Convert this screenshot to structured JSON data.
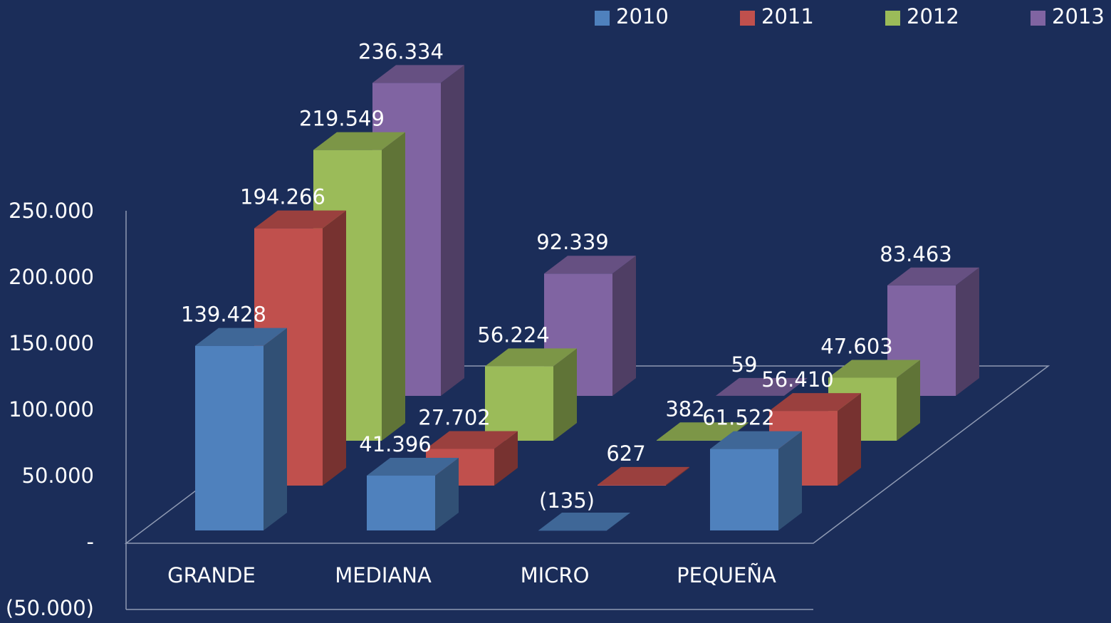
{
  "chart_data": {
    "type": "bar3d",
    "categories": [
      "GRANDE",
      "MEDIANA",
      "MICRO",
      "PEQUEÑA"
    ],
    "series": [
      {
        "name": "2010",
        "color": "#4f81bd",
        "values": [
          139428,
          41396,
          -135,
          61522
        ],
        "value_labels": [
          "139.428",
          "41.396",
          "(135)",
          "61.522"
        ]
      },
      {
        "name": "2011",
        "color": "#c0504d",
        "values": [
          194266,
          27702,
          627,
          56410
        ],
        "value_labels": [
          "194.266",
          "27.702",
          "627",
          "56.410"
        ]
      },
      {
        "name": "2012",
        "color": "#9bbb59",
        "values": [
          219549,
          56224,
          382,
          47603
        ],
        "value_labels": [
          "219.549",
          "56.224",
          "382",
          "47.603"
        ]
      },
      {
        "name": "2013",
        "color": "#8064a2",
        "values": [
          236334,
          92339,
          59,
          83463
        ],
        "value_labels": [
          "236.334",
          "92.339",
          "59",
          "83.463"
        ]
      }
    ],
    "ylim": [
      -50000,
      250000
    ],
    "yticks": [
      {
        "value": -50000,
        "label": "(50.000)"
      },
      {
        "value": 0,
        "label": "-"
      },
      {
        "value": 50000,
        "label": "50.000"
      },
      {
        "value": 100000,
        "label": "100.000"
      },
      {
        "value": 150000,
        "label": "150.000"
      },
      {
        "value": 200000,
        "label": "200.000"
      },
      {
        "value": 250000,
        "label": "250.000"
      }
    ],
    "legend": "top-right"
  }
}
